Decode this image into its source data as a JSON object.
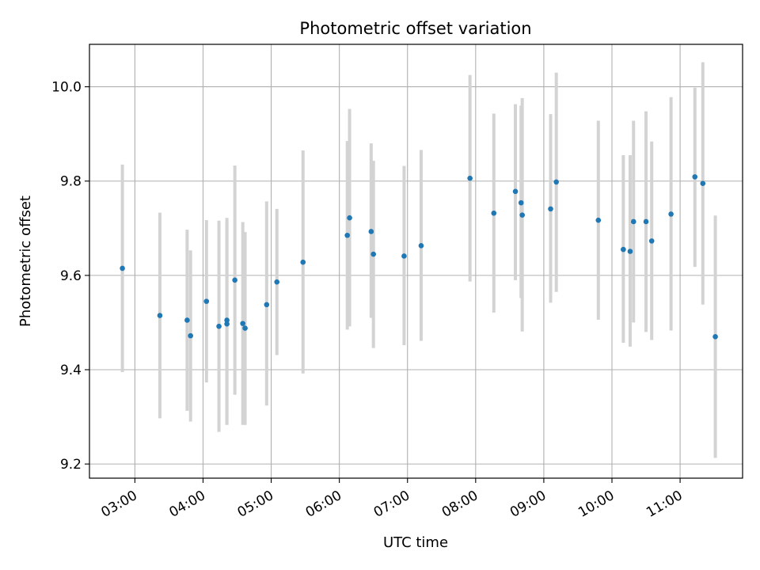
{
  "chart_data": {
    "type": "scatter",
    "title": "Photometric offset variation",
    "xlabel": "UTC time",
    "ylabel": "Photometric offset",
    "x_axis": {
      "kind": "time",
      "range": [
        "02:20",
        "11:55"
      ],
      "ticks": [
        "03:00",
        "04:00",
        "05:00",
        "06:00",
        "07:00",
        "08:00",
        "09:00",
        "10:00",
        "11:00"
      ]
    },
    "y_axis": {
      "range": [
        9.17,
        10.09
      ],
      "ticks": [
        "9.2",
        "9.4",
        "9.6",
        "9.8",
        "10.0"
      ]
    },
    "grid": true,
    "colors": {
      "points": "#1f77b4",
      "errorbars": "#d3d3d3",
      "grid": "#b0b0b0"
    },
    "points": [
      {
        "t": "02:49",
        "y": 9.615,
        "lo": 9.395,
        "hi": 9.835
      },
      {
        "t": "03:22",
        "y": 9.515,
        "lo": 9.297,
        "hi": 9.733
      },
      {
        "t": "03:46",
        "y": 9.505,
        "lo": 9.313,
        "hi": 9.697
      },
      {
        "t": "03:49",
        "y": 9.472,
        "lo": 9.29,
        "hi": 9.653
      },
      {
        "t": "04:03",
        "y": 9.545,
        "lo": 9.373,
        "hi": 9.717
      },
      {
        "t": "04:14",
        "y": 9.492,
        "lo": 9.268,
        "hi": 9.716
      },
      {
        "t": "04:21",
        "y": 9.505,
        "lo": 9.286,
        "hi": 9.722
      },
      {
        "t": "04:21",
        "y": 9.497,
        "lo": 9.283,
        "hi": 9.712
      },
      {
        "t": "04:28",
        "y": 9.59,
        "lo": 9.347,
        "hi": 9.833
      },
      {
        "t": "04:35",
        "y": 9.498,
        "lo": 9.283,
        "hi": 9.713
      },
      {
        "t": "04:37",
        "y": 9.488,
        "lo": 9.283,
        "hi": 9.692
      },
      {
        "t": "04:56",
        "y": 9.538,
        "lo": 9.324,
        "hi": 9.757
      },
      {
        "t": "05:05",
        "y": 9.586,
        "lo": 9.431,
        "hi": 9.741
      },
      {
        "t": "05:28",
        "y": 9.628,
        "lo": 9.392,
        "hi": 9.865
      },
      {
        "t": "06:07",
        "y": 9.685,
        "lo": 9.485,
        "hi": 9.885
      },
      {
        "t": "06:09",
        "y": 9.722,
        "lo": 9.492,
        "hi": 9.953
      },
      {
        "t": "06:28",
        "y": 9.693,
        "lo": 9.51,
        "hi": 9.88
      },
      {
        "t": "06:30",
        "y": 9.645,
        "lo": 9.446,
        "hi": 9.843
      },
      {
        "t": "06:57",
        "y": 9.641,
        "lo": 9.452,
        "hi": 9.832
      },
      {
        "t": "07:12",
        "y": 9.663,
        "lo": 9.461,
        "hi": 9.866
      },
      {
        "t": "07:55",
        "y": 9.806,
        "lo": 9.587,
        "hi": 10.025
      },
      {
        "t": "08:16",
        "y": 9.732,
        "lo": 9.521,
        "hi": 9.943
      },
      {
        "t": "08:35",
        "y": 9.778,
        "lo": 9.59,
        "hi": 9.963
      },
      {
        "t": "08:40",
        "y": 9.754,
        "lo": 9.552,
        "hi": 9.96
      },
      {
        "t": "08:41",
        "y": 9.728,
        "lo": 9.481,
        "hi": 9.976
      },
      {
        "t": "09:06",
        "y": 9.741,
        "lo": 9.542,
        "hi": 9.942
      },
      {
        "t": "09:11",
        "y": 9.798,
        "lo": 9.565,
        "hi": 10.03
      },
      {
        "t": "09:48",
        "y": 9.717,
        "lo": 9.506,
        "hi": 9.928
      },
      {
        "t": "10:10",
        "y": 9.655,
        "lo": 9.457,
        "hi": 9.855
      },
      {
        "t": "10:16",
        "y": 9.651,
        "lo": 9.449,
        "hi": 9.855
      },
      {
        "t": "10:19",
        "y": 9.714,
        "lo": 9.5,
        "hi": 9.928
      },
      {
        "t": "10:30",
        "y": 9.714,
        "lo": 9.48,
        "hi": 9.948
      },
      {
        "t": "10:35",
        "y": 9.673,
        "lo": 9.463,
        "hi": 9.884
      },
      {
        "t": "10:52",
        "y": 9.73,
        "lo": 9.483,
        "hi": 9.978
      },
      {
        "t": "11:13",
        "y": 9.809,
        "lo": 9.618,
        "hi": 9.998
      },
      {
        "t": "11:20",
        "y": 9.795,
        "lo": 9.538,
        "hi": 10.052
      },
      {
        "t": "11:31",
        "y": 9.47,
        "lo": 9.213,
        "hi": 9.727
      }
    ]
  }
}
